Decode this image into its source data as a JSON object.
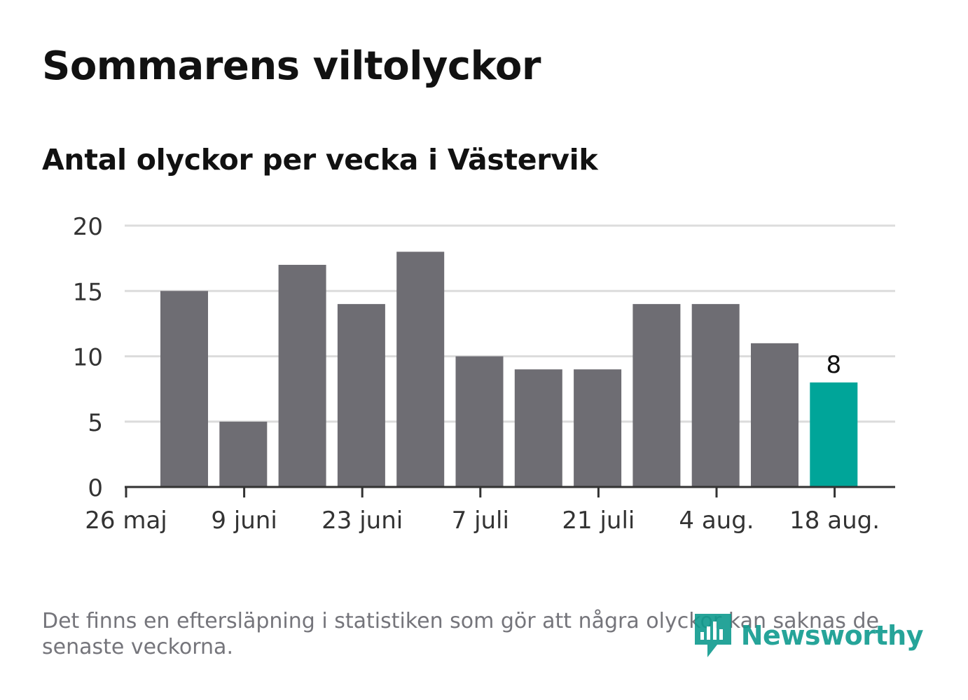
{
  "title": "Sommarens viltolyckor",
  "subtitle": "Antal olyckor per vecka i Västervik",
  "note": "Det finns en eftersläpning i statistiken som gör att några olyckor kan saknas de senaste veckorna.",
  "brand": {
    "name": "Newsworthy",
    "icon": "newsworthy-logo-icon",
    "color": "#0f9b8e"
  },
  "chart_data": {
    "type": "bar",
    "title": "",
    "xlabel": "",
    "ylabel": "",
    "ylim": [
      0,
      20
    ],
    "yticks": [
      0,
      5,
      10,
      15,
      20
    ],
    "grid": true,
    "bar_color": "#6e6d73",
    "highlight_color": "#00a599",
    "x_tick_labels": [
      "26 maj",
      "9 juni",
      "23 juni",
      "7 juli",
      "21 juli",
      "4 aug.",
      "18 aug."
    ],
    "values": [
      15,
      5,
      17,
      14,
      18,
      10,
      9,
      9,
      14,
      14,
      11,
      8
    ],
    "highlight_index": 11,
    "data_labels": [
      {
        "index": 11,
        "text": "8"
      }
    ]
  }
}
